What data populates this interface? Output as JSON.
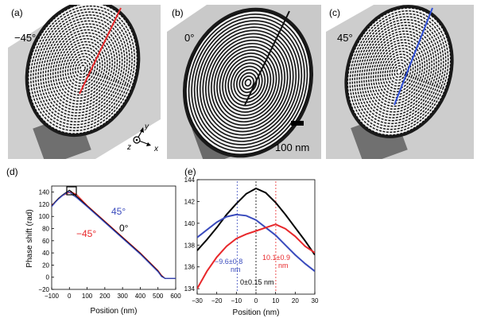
{
  "panels": {
    "a": {
      "label": "(a)",
      "angle": "−45°",
      "line_color": "#e8282b"
    },
    "b": {
      "label": "(b)",
      "angle": "0°",
      "line_color": "#111111",
      "scale_label": "100 nm"
    },
    "c": {
      "label": "(c)",
      "angle": "45°",
      "line_color": "#2f4fd8"
    },
    "d": {
      "label": "(d)"
    },
    "e": {
      "label": "(e)"
    }
  },
  "axes_glyph": {
    "x": "x",
    "y": "y",
    "z": "z"
  },
  "colors": {
    "red": "#e8282b",
    "blue": "#3a4bbd",
    "black": "#000000"
  },
  "chart_data": [
    {
      "type": "line",
      "ylabel": "Phase shift (rad)",
      "xlabel": "Position (nm)",
      "xlim": [
        -100,
        600
      ],
      "ylim": [
        -20,
        150
      ],
      "xticks": [
        "−100",
        "0",
        "100",
        "200",
        "300",
        "400",
        "500",
        "600"
      ],
      "yticks": [
        "−20",
        "0",
        "20",
        "40",
        "60",
        "80",
        "100",
        "120",
        "140"
      ],
      "annotations": [
        {
          "text": "45°",
          "color": "#3a4bbd"
        },
        {
          "text": "0°",
          "color": "#000000"
        },
        {
          "text": "−45°",
          "color": "#e8282b"
        }
      ],
      "series": [
        {
          "color": "#e8282b",
          "x": [
            -100,
            -80,
            -60,
            -40,
            -20,
            -10,
            0,
            10,
            20,
            40,
            100,
            200,
            300,
            400,
            500,
            520,
            540,
            560,
            600
          ],
          "y": [
            118,
            124,
            130,
            134,
            137,
            138.5,
            139.5,
            140,
            139,
            136,
            118,
            92,
            66,
            40,
            11,
            3,
            -2,
            -2,
            -2
          ]
        },
        {
          "color": "#000000",
          "x": [
            -100,
            -80,
            -60,
            -40,
            -20,
            -10,
            0,
            10,
            20,
            40,
            100,
            200,
            300,
            400,
            500,
            520,
            540,
            560,
            600
          ],
          "y": [
            117,
            124,
            130,
            135,
            139,
            141,
            143,
            141,
            138,
            133,
            117,
            91,
            65,
            39,
            10,
            2,
            -2,
            -2,
            -2
          ]
        },
        {
          "color": "#3a4bbd",
          "x": [
            -100,
            -80,
            -60,
            -40,
            -20,
            -10,
            0,
            10,
            20,
            40,
            100,
            200,
            300,
            400,
            500,
            520,
            540,
            560,
            600
          ],
          "y": [
            116,
            123,
            129,
            134,
            138,
            140.5,
            140,
            138,
            135,
            131,
            116,
            90,
            64,
            38,
            9,
            1,
            -2,
            -2,
            -2
          ]
        }
      ]
    },
    {
      "type": "line",
      "xlabel": "Position (nm)",
      "xlim": [
        -30,
        30
      ],
      "ylim": [
        133.5,
        144
      ],
      "xticks": [
        "−30",
        "−20",
        "−10",
        "0",
        "10",
        "20",
        "30"
      ],
      "yticks": [
        "134",
        "136",
        "138",
        "140",
        "142",
        "144"
      ],
      "annotations": [
        {
          "text": "−9.6±0.8",
          "text2": "nm",
          "color": "#3a4bbd",
          "x": -9.6
        },
        {
          "text": "10.1±0.9",
          "text2": "nm",
          "color": "#e8282b",
          "x": 10.1
        },
        {
          "text": "0±0.15 nm",
          "color": "#000000",
          "x": 0
        }
      ],
      "series": [
        {
          "color": "#000000",
          "x": [
            -30,
            -25,
            -20,
            -15,
            -10,
            -5,
            0,
            5,
            10,
            15,
            20,
            25,
            30
          ],
          "y": [
            137.5,
            138.5,
            139.6,
            140.8,
            141.8,
            142.7,
            143.2,
            142.8,
            141.9,
            140.8,
            139.6,
            138.4,
            137.1
          ]
        },
        {
          "color": "#3a4bbd",
          "x": [
            -30,
            -25,
            -20,
            -15,
            -10,
            -5,
            0,
            5,
            10,
            15,
            20,
            25,
            30
          ],
          "y": [
            138.7,
            139.4,
            140.1,
            140.6,
            140.8,
            140.7,
            140.3,
            139.6,
            138.9,
            138.0,
            137.1,
            136.3,
            135.6
          ]
        },
        {
          "color": "#e8282b",
          "x": [
            -30,
            -25,
            -20,
            -15,
            -10,
            -5,
            0,
            5,
            10,
            15,
            20,
            25,
            30
          ],
          "y": [
            134.0,
            135.6,
            136.9,
            137.9,
            138.6,
            139.0,
            139.3,
            139.6,
            139.9,
            139.5,
            138.8,
            137.9,
            137.3
          ]
        }
      ]
    }
  ]
}
